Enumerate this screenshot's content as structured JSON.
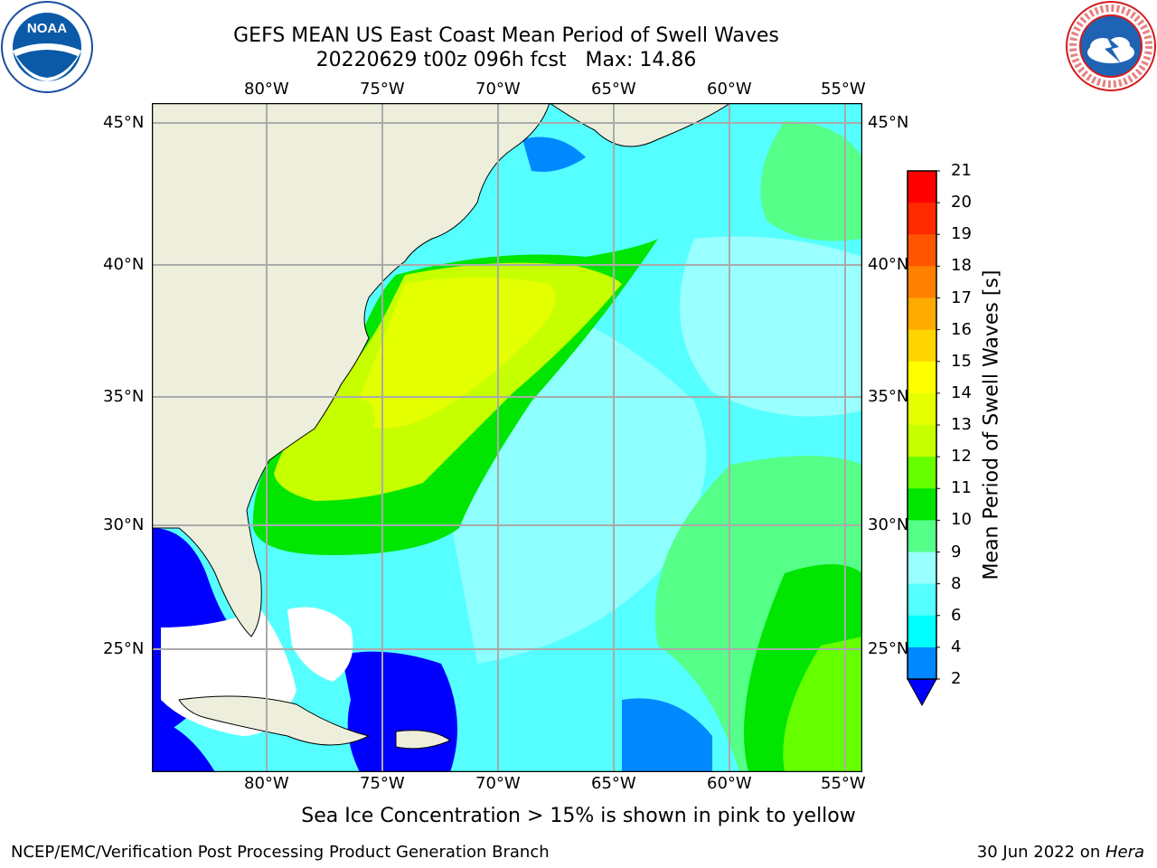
{
  "header": {
    "title": "GEFS MEAN US East Coast Mean Period of Swell Waves",
    "subtitle": "20220629 t00z 096h fcst   Max: 14.86"
  },
  "logos": {
    "left": "NOAA",
    "right": "NATIONAL WEATHER SERVICE"
  },
  "map": {
    "lon_labels": [
      "80°W",
      "75°W",
      "70°W",
      "65°W",
      "60°W",
      "55°W"
    ],
    "lat_labels": [
      "45°N",
      "40°N",
      "35°N",
      "30°N",
      "25°N"
    ],
    "land_color": "#eeeedd",
    "grid_color": "#aaaaaa"
  },
  "colorbar": {
    "title": "Mean Period of Swell Waves [s]",
    "ticks": [
      "21",
      "20",
      "19",
      "18",
      "17",
      "16",
      "15",
      "14",
      "13",
      "12",
      "11",
      "10",
      "9",
      "8",
      "6",
      "4",
      "2"
    ],
    "colors": [
      "#ff0000",
      "#ff2a00",
      "#ff5500",
      "#ff8000",
      "#ffaa00",
      "#ffd400",
      "#ffff00",
      "#e3ff00",
      "#c6ff00",
      "#66ff00",
      "#00e600",
      "#55ff88",
      "#99ffff",
      "#55ffff",
      "#00ffff",
      "#0088ff"
    ],
    "under_color": "#0000ff"
  },
  "footer": {
    "note": "Sea Ice Concentration > 15% is shown in pink to yellow",
    "credit": "NCEP/EMC/Verification Post Processing Product Generation Branch",
    "date": "30 Jun 2022 on ",
    "machine": "Hera"
  }
}
